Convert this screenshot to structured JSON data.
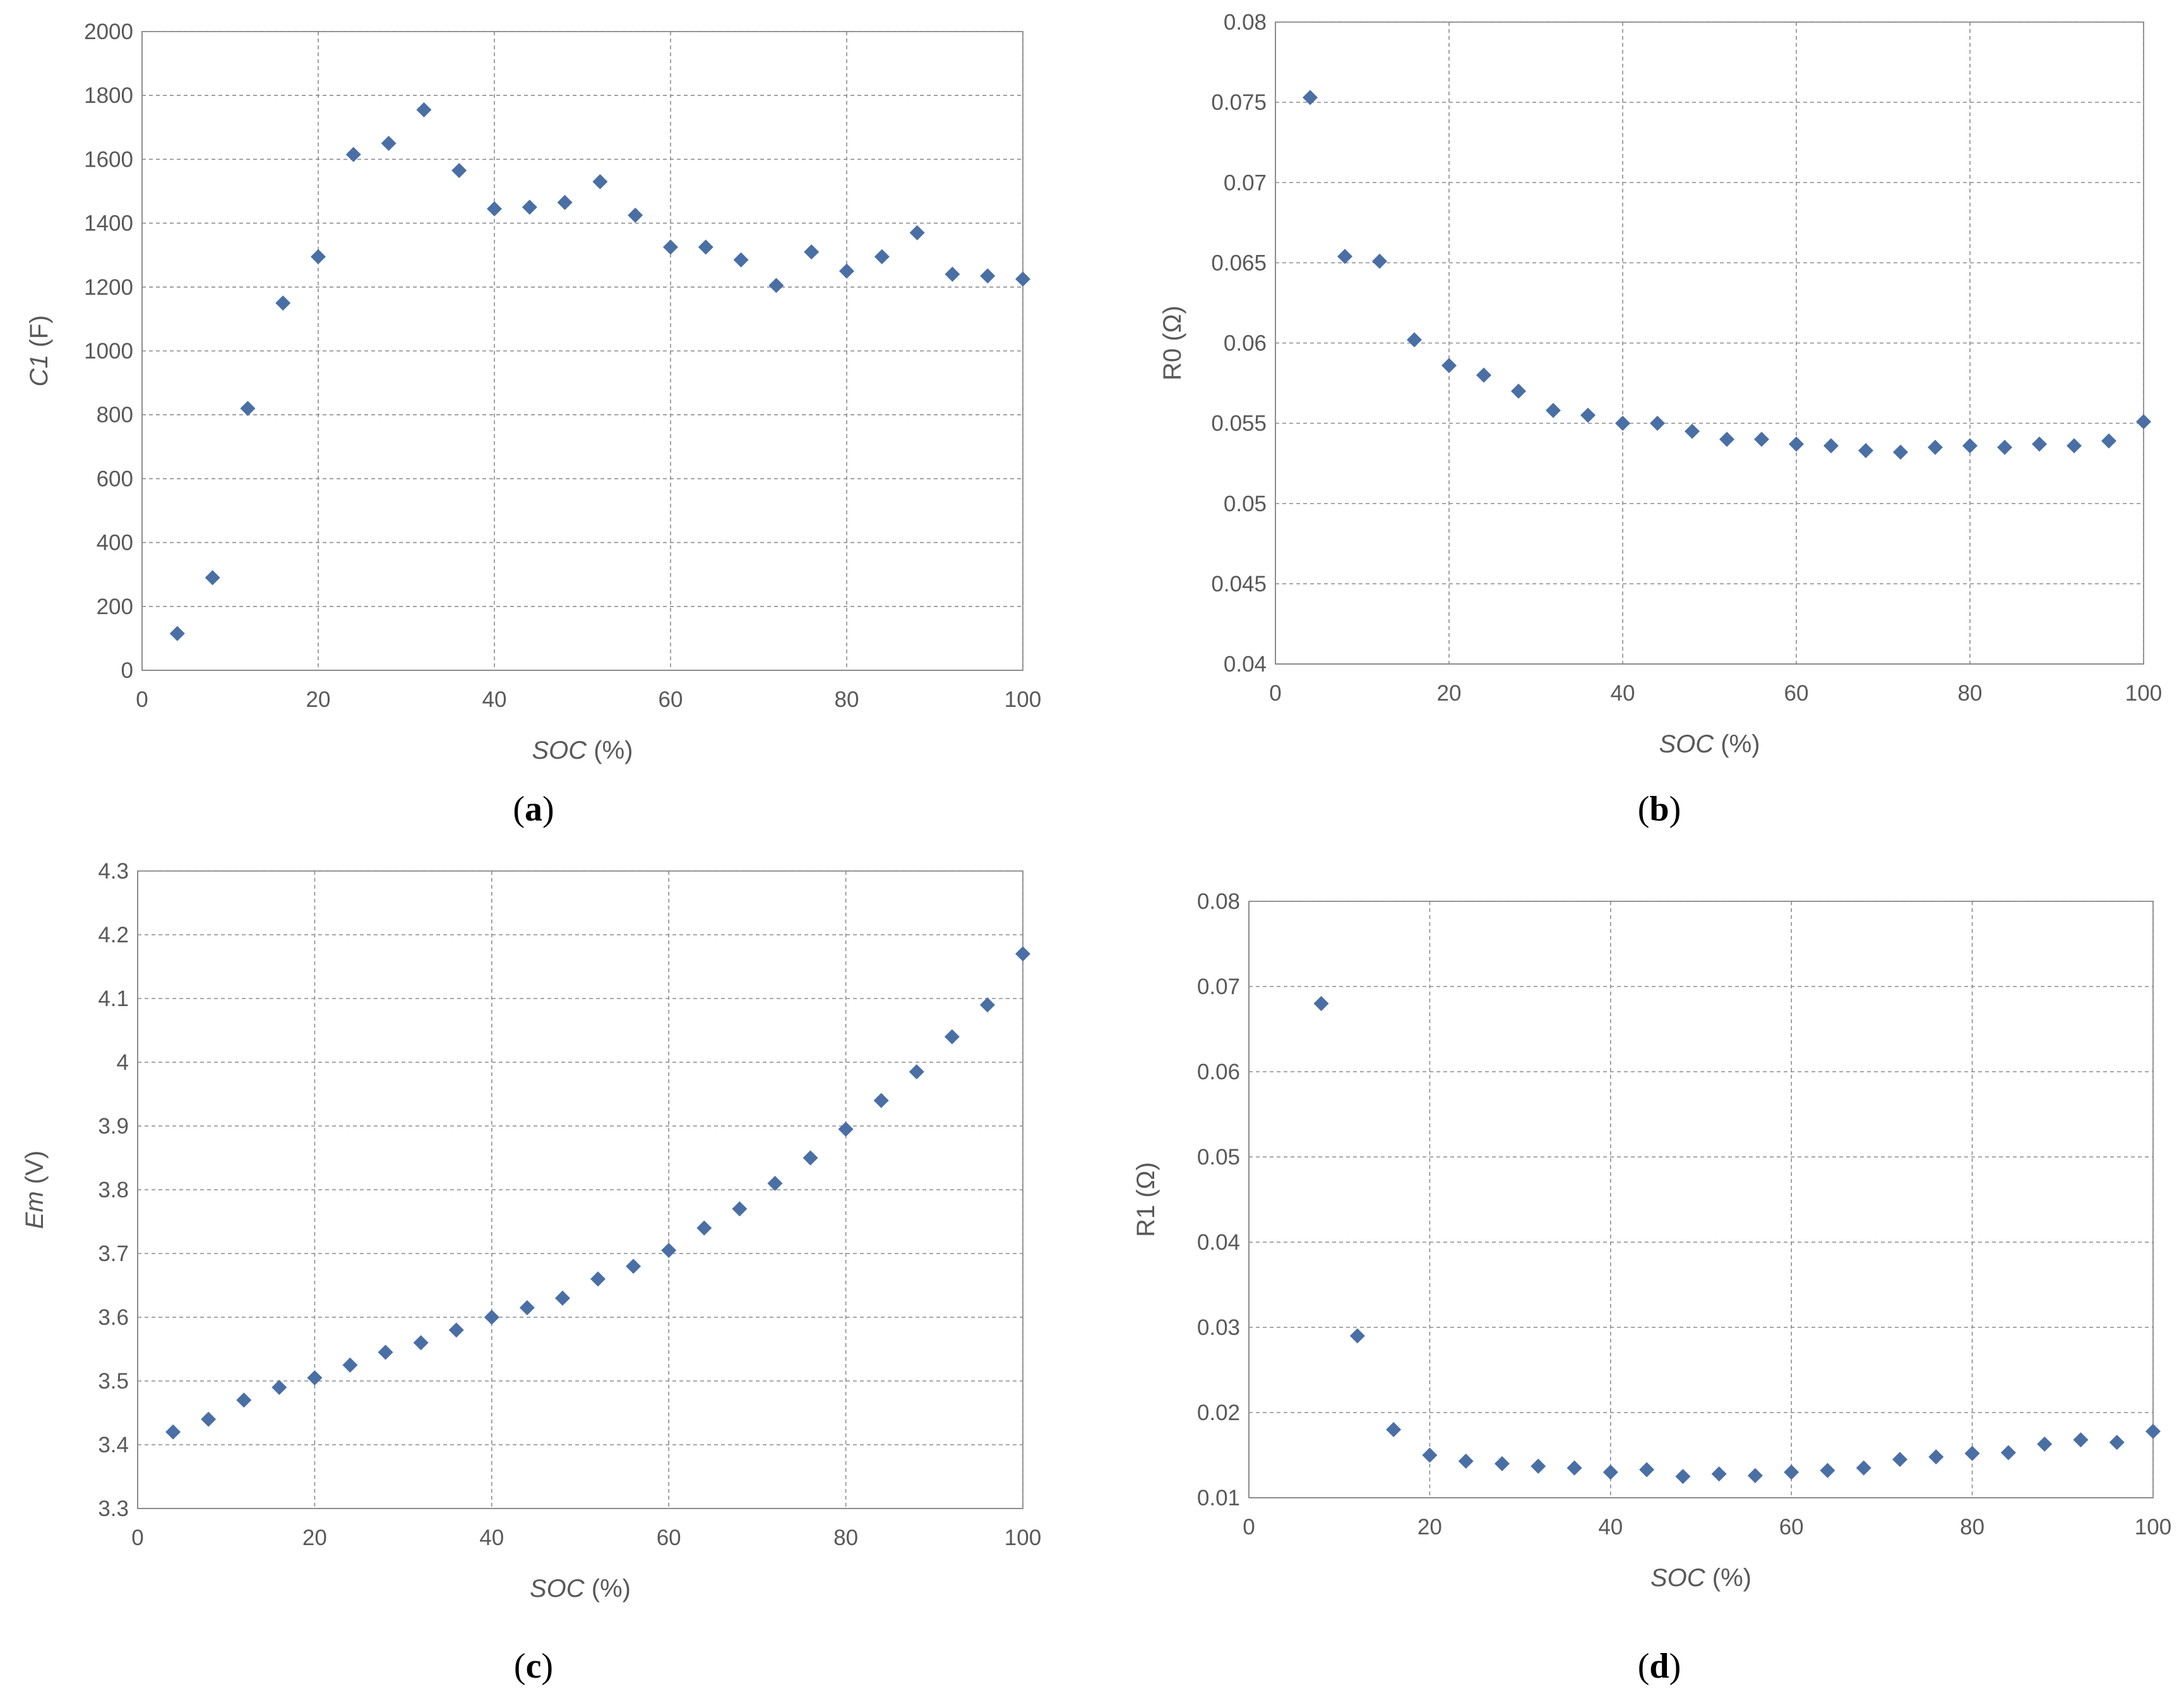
{
  "colors": {
    "marker": "#4a6fa5",
    "grid": "#8c8c8c",
    "text": "#595959"
  },
  "chart_data": [
    {
      "id": "a",
      "type": "scatter",
      "panel_label": "a",
      "xlabel_italic": "SOC",
      "xlabel_rest": " (%)",
      "ylabel_italic": "C1",
      "ylabel_rest": " (F)",
      "xlim": [
        0,
        100
      ],
      "ylim": [
        0,
        2000
      ],
      "xticks": [
        "0",
        "20",
        "40",
        "60",
        "80",
        "100"
      ],
      "yticks": [
        "0",
        "200",
        "400",
        "600",
        "800",
        "1000",
        "1200",
        "1400",
        "1600",
        "1800",
        "2000"
      ],
      "grid": true,
      "x": [
        4,
        8,
        12,
        16,
        20,
        24,
        28,
        32,
        36,
        40,
        44,
        48,
        52,
        56,
        60,
        64,
        68,
        72,
        76,
        80,
        84,
        88,
        92,
        96,
        100
      ],
      "y": [
        115,
        290,
        820,
        1150,
        1295,
        1615,
        1650,
        1755,
        1565,
        1445,
        1450,
        1465,
        1530,
        1425,
        1325,
        1325,
        1285,
        1205,
        1310,
        1250,
        1295,
        1370,
        1240,
        1235,
        1225
      ]
    },
    {
      "id": "b",
      "type": "scatter",
      "panel_label": "b",
      "xlabel_italic": "SOC",
      "xlabel_rest": " (%)",
      "ylabel_italic": "",
      "ylabel_rest": "R0 (Ω)",
      "xlim": [
        0,
        100
      ],
      "ylim": [
        0.04,
        0.08
      ],
      "xticks": [
        "0",
        "20",
        "40",
        "60",
        "80",
        "100"
      ],
      "yticks": [
        "0.04",
        "0.045",
        "0.05",
        "0.055",
        "0.06",
        "0.065",
        "0.07",
        "0.075",
        "0.08"
      ],
      "grid": true,
      "x": [
        4,
        8,
        12,
        16,
        20,
        24,
        28,
        32,
        36,
        40,
        44,
        48,
        52,
        56,
        60,
        64,
        68,
        72,
        76,
        80,
        84,
        88,
        92,
        96,
        100
      ],
      "y": [
        0.0753,
        0.0654,
        0.0651,
        0.0602,
        0.0586,
        0.058,
        0.057,
        0.0558,
        0.0555,
        0.055,
        0.055,
        0.0545,
        0.054,
        0.054,
        0.0537,
        0.0536,
        0.0533,
        0.0532,
        0.0535,
        0.0536,
        0.0535,
        0.0537,
        0.0536,
        0.0539,
        0.0551
      ]
    },
    {
      "id": "c",
      "type": "scatter",
      "panel_label": "c",
      "xlabel_italic": "SOC",
      "xlabel_rest": " (%)",
      "ylabel_italic": "Em",
      "ylabel_rest": " (V)",
      "xlim": [
        0,
        100
      ],
      "ylim": [
        3.3,
        4.3
      ],
      "xticks": [
        "0",
        "20",
        "40",
        "60",
        "80",
        "100"
      ],
      "yticks": [
        "3.3",
        "3.4",
        "3.5",
        "3.6",
        "3.7",
        "3.8",
        "3.9",
        "4",
        "4.1",
        "4.2",
        "4.3"
      ],
      "grid": true,
      "x": [
        4,
        8,
        12,
        16,
        20,
        24,
        28,
        32,
        36,
        40,
        44,
        48,
        52,
        56,
        60,
        64,
        68,
        72,
        76,
        80,
        84,
        88,
        92,
        96,
        100
      ],
      "y": [
        3.42,
        3.44,
        3.47,
        3.49,
        3.505,
        3.525,
        3.545,
        3.56,
        3.58,
        3.6,
        3.615,
        3.63,
        3.66,
        3.68,
        3.705,
        3.74,
        3.77,
        3.81,
        3.85,
        3.895,
        3.94,
        3.985,
        4.04,
        4.09,
        4.17
      ]
    },
    {
      "id": "d",
      "type": "scatter",
      "panel_label": "d",
      "xlabel_italic": "SOC",
      "xlabel_rest": " (%)",
      "ylabel_italic": "",
      "ylabel_rest": "R1 (Ω)",
      "xlim": [
        0,
        100
      ],
      "ylim": [
        0.01,
        0.08
      ],
      "xticks": [
        "0",
        "20",
        "40",
        "60",
        "80",
        "100"
      ],
      "yticks": [
        "0.01",
        "0.02",
        "0.03",
        "0.04",
        "0.05",
        "0.06",
        "0.07",
        "0.08"
      ],
      "grid": true,
      "x": [
        8,
        12,
        16,
        20,
        24,
        28,
        32,
        36,
        40,
        44,
        48,
        52,
        56,
        60,
        64,
        68,
        72,
        76,
        80,
        84,
        88,
        92,
        96,
        100
      ],
      "y": [
        0.068,
        0.029,
        0.018,
        0.015,
        0.0143,
        0.014,
        0.0137,
        0.0135,
        0.013,
        0.0133,
        0.0125,
        0.0128,
        0.0126,
        0.013,
        0.0132,
        0.0135,
        0.0145,
        0.0148,
        0.0152,
        0.0153,
        0.0163,
        0.0168,
        0.0165,
        0.0178
      ]
    }
  ]
}
